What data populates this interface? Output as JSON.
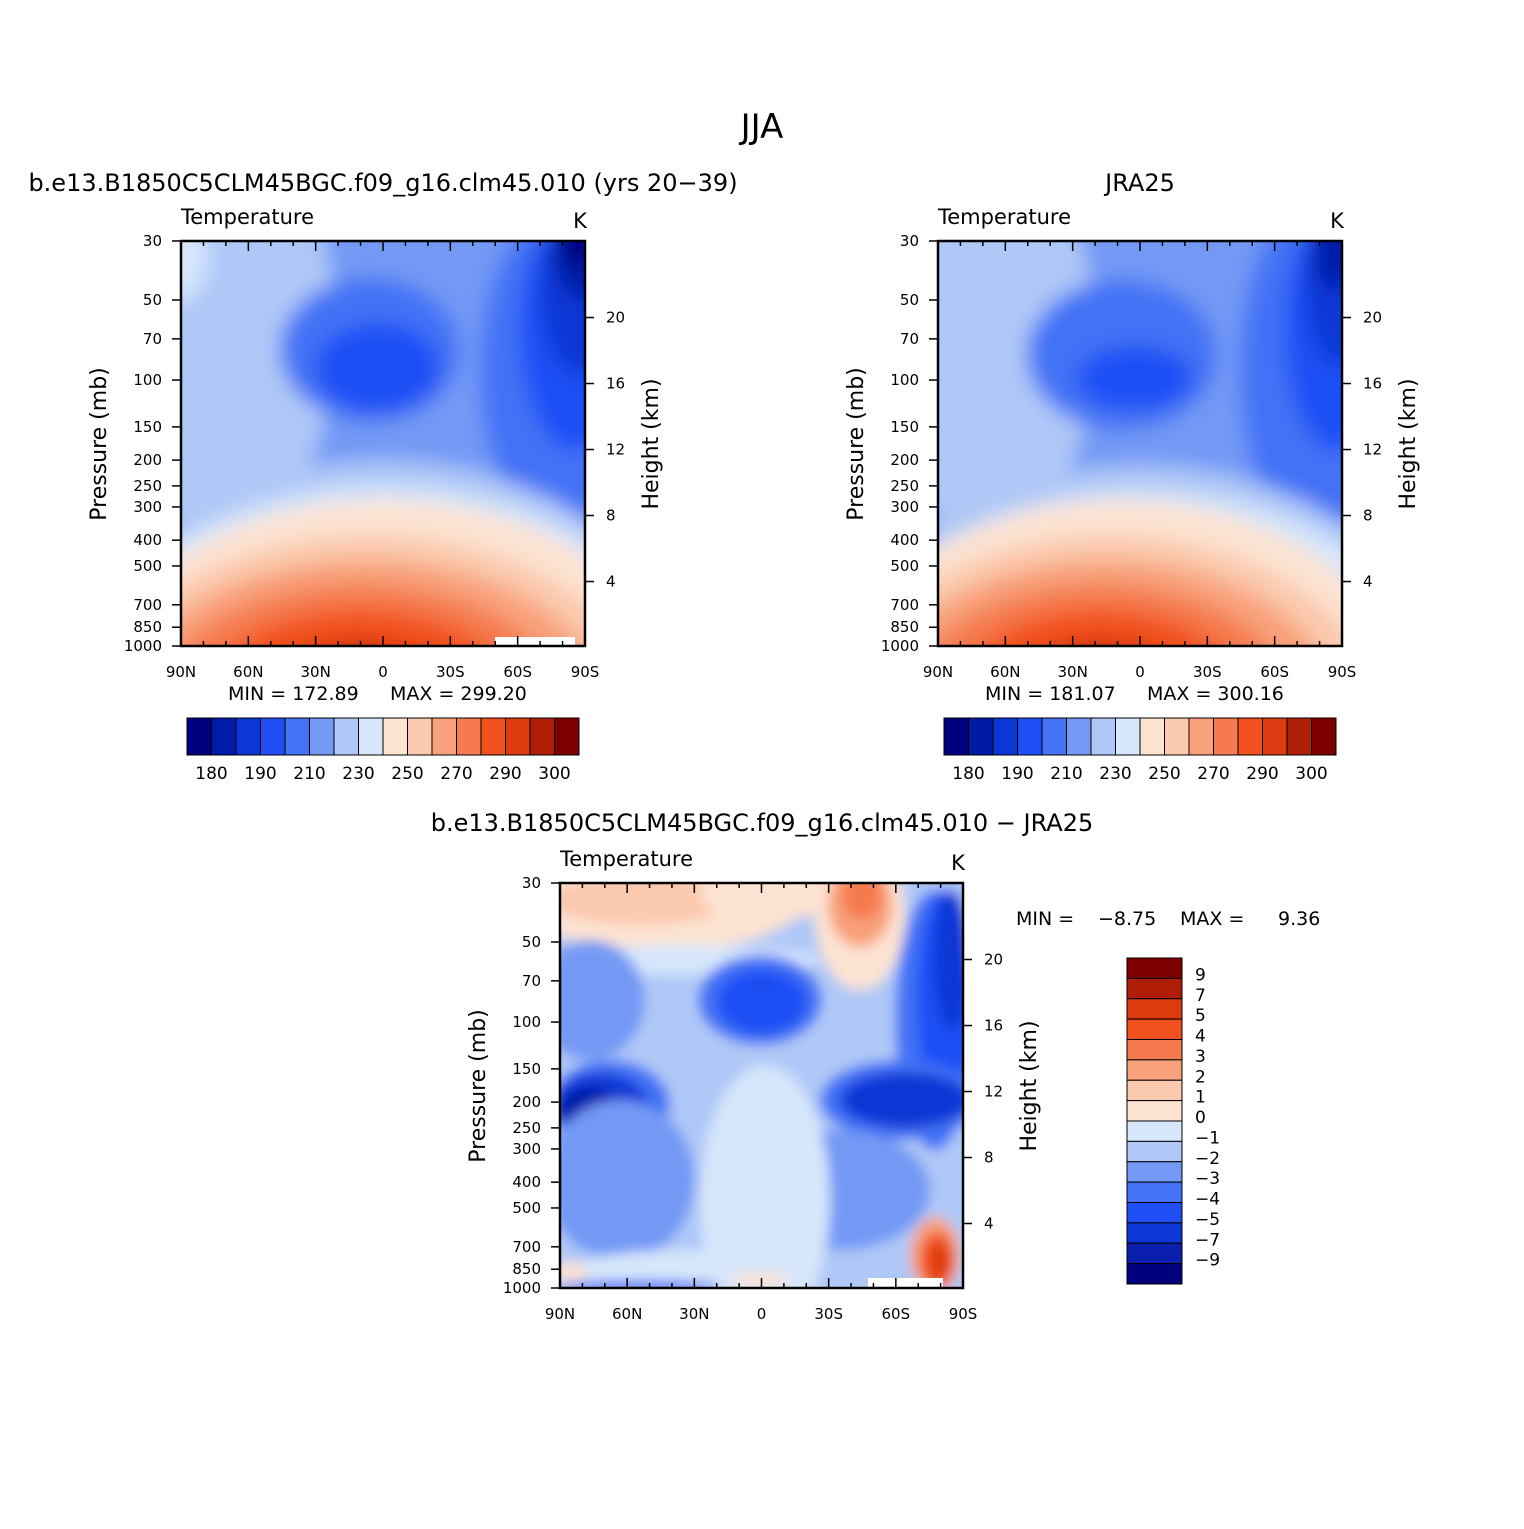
{
  "main_title": "JJA",
  "colors": {
    "abs_palette": [
      "#00007f",
      "#001aa8",
      "#0a37d6",
      "#1f4ff5",
      "#4372f5",
      "#7399f5",
      "#afc8f7",
      "#d6e6fb",
      "#fde3d2",
      "#fbc9ad",
      "#f8a17a",
      "#f57a4e",
      "#f2511f",
      "#dd3a0f",
      "#b01e07",
      "#7f0000"
    ],
    "diff_palette": [
      "#00007f",
      "#0a1fae",
      "#0a37d6",
      "#1f4ff5",
      "#4372f5",
      "#7399f5",
      "#afc8f7",
      "#d6e6fb",
      "#fde3d2",
      "#fbc9ad",
      "#f8a17a",
      "#f57a4e",
      "#f2511f",
      "#dd3a0f",
      "#b01e07",
      "#7f0000"
    ]
  },
  "chart_data": [
    {
      "type": "heatmap",
      "title": "b.e13.B1850C5CLM45BGC.f09_g16.clm45.010 (yrs 20−39)",
      "variable": "Temperature",
      "units": "K",
      "ylabel": "Pressure (mb)",
      "ylabel_right": "Height (km)",
      "x_ticks": [
        "90N",
        "60N",
        "30N",
        "0",
        "30S",
        "60S",
        "90S"
      ],
      "y_ticks": [
        "30",
        "50",
        "70",
        "100",
        "150",
        "200",
        "250",
        "300",
        "400",
        "500",
        "700",
        "850",
        "1000"
      ],
      "y_right_ticks": [
        "20",
        "16",
        "12",
        "8",
        "4"
      ],
      "min_label": "MIN = 172.89",
      "max_label": "MAX = 299.20",
      "min": 172.89,
      "max": 299.2,
      "colorbar_labels": [
        "180",
        "190",
        "210",
        "230",
        "250",
        "270",
        "290",
        "300"
      ]
    },
    {
      "type": "heatmap",
      "title": "JRA25",
      "variable": "Temperature",
      "units": "K",
      "ylabel": "Pressure (mb)",
      "ylabel_right": "Height (km)",
      "x_ticks": [
        "90N",
        "60N",
        "30N",
        "0",
        "30S",
        "60S",
        "90S"
      ],
      "y_ticks": [
        "30",
        "50",
        "70",
        "100",
        "150",
        "200",
        "250",
        "300",
        "400",
        "500",
        "700",
        "850",
        "1000"
      ],
      "y_right_ticks": [
        "20",
        "16",
        "12",
        "8",
        "4"
      ],
      "min_label": "MIN = 181.07",
      "max_label": "MAX = 300.16",
      "min": 181.07,
      "max": 300.16,
      "colorbar_labels": [
        "180",
        "190",
        "210",
        "230",
        "250",
        "270",
        "290",
        "300"
      ]
    },
    {
      "type": "heatmap",
      "title": "b.e13.B1850C5CLM45BGC.f09_g16.clm45.010 − JRA25",
      "variable": "Temperature",
      "units": "K",
      "ylabel": "Pressure (mb)",
      "ylabel_right": "Height (km)",
      "x_ticks": [
        "90N",
        "60N",
        "30N",
        "0",
        "30S",
        "60S",
        "90S"
      ],
      "y_ticks": [
        "30",
        "50",
        "70",
        "100",
        "150",
        "200",
        "250",
        "300",
        "400",
        "500",
        "700",
        "850",
        "1000"
      ],
      "y_right_ticks": [
        "20",
        "16",
        "12",
        "8",
        "4"
      ],
      "min_label": "MIN =",
      "min_value": "−8.75",
      "max_label": "MAX =",
      "max_value": "9.36",
      "min": -8.75,
      "max": 9.36,
      "colorbar_labels": [
        "9",
        "7",
        "5",
        "4",
        "3",
        "2",
        "1",
        "0",
        "−1",
        "−2",
        "−3",
        "−4",
        "−5",
        "−7",
        "−9"
      ]
    }
  ]
}
